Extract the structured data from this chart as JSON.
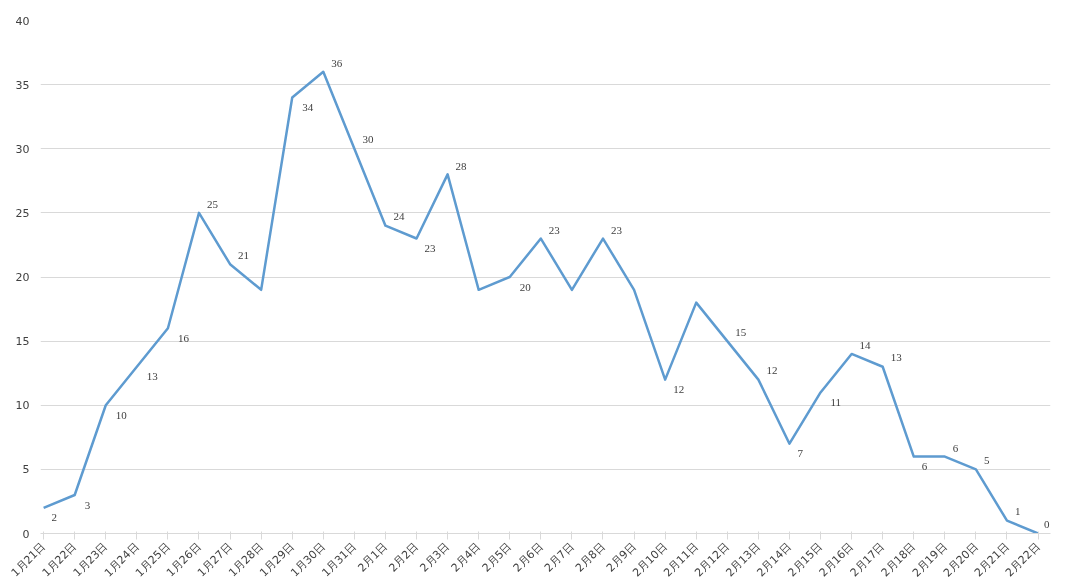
{
  "chart_data": {
    "type": "line",
    "categories": [
      "1月21日",
      "1月22日",
      "1月23日",
      "1月24日",
      "1月25日",
      "1月26日",
      "1月27日",
      "1月28日",
      "1月29日",
      "1月30日",
      "1月31日",
      "2月1日",
      "2月2日",
      "2月3日",
      "2月4日",
      "2月5日",
      "2月6日",
      "2月7日",
      "2月8日",
      "2月9日",
      "2月10日",
      "2月11日",
      "2月12日",
      "2月13日",
      "2月14日",
      "2月15日",
      "2月16日",
      "2月17日",
      "2月18日",
      "2月19日",
      "2月20日",
      "2月21日",
      "2月22日"
    ],
    "series": [
      {
        "color": "#5e9bd0",
        "values": [
          2,
          3,
          10,
          13,
          16,
          25,
          21,
          19,
          34,
          36,
          30,
          24,
          23,
          28,
          19,
          20,
          23,
          19,
          23,
          19,
          12,
          18,
          15,
          12,
          7,
          11,
          14,
          13,
          6,
          6,
          5,
          1,
          0
        ],
        "value_labels": [
          "2",
          "3",
          "10",
          "13",
          "16",
          "25",
          "21",
          null,
          "34",
          "36",
          "30",
          "24",
          "23",
          "28",
          null,
          "20",
          "23",
          null,
          "23",
          null,
          "12",
          null,
          "15",
          "12",
          "7",
          "11",
          "14",
          "13",
          "6",
          "6",
          "5",
          "1",
          "0"
        ]
      }
    ],
    "ylim": [
      0,
      40
    ],
    "yticks": [
      0,
      5,
      10,
      15,
      20,
      25,
      30,
      35,
      40
    ],
    "grid": "y",
    "marker": "none",
    "line_style": "solid"
  }
}
